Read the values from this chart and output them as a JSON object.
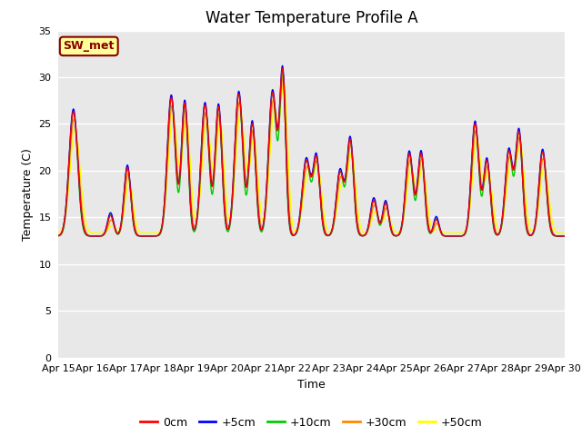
{
  "title": "Water Temperature Profile A",
  "xlabel": "Time",
  "ylabel": "Temperature (C)",
  "ylim": [
    0,
    35
  ],
  "yticks": [
    0,
    5,
    10,
    15,
    20,
    25,
    30,
    35
  ],
  "xtick_labels": [
    "Apr 15",
    "Apr 16",
    "Apr 17",
    "Apr 18",
    "Apr 19",
    "Apr 20",
    "Apr 21",
    "Apr 22",
    "Apr 23",
    "Apr 24",
    "Apr 25",
    "Apr 26",
    "Apr 27",
    "Apr 28",
    "Apr 29",
    "Apr 30"
  ],
  "legend_labels": [
    "0cm",
    "+5cm",
    "+10cm",
    "+30cm",
    "+50cm"
  ],
  "legend_colors": [
    "#ff0000",
    "#0000ff",
    "#00cc00",
    "#ff8800",
    "#ffff00"
  ],
  "annotation_text": "SW_met",
  "annotation_color": "#880000",
  "annotation_bg": "#ffff99",
  "plot_bg": "#e8e8e8",
  "grid_color": "#ffffff",
  "title_fontsize": 12,
  "label_fontsize": 9,
  "tick_fontsize": 8
}
